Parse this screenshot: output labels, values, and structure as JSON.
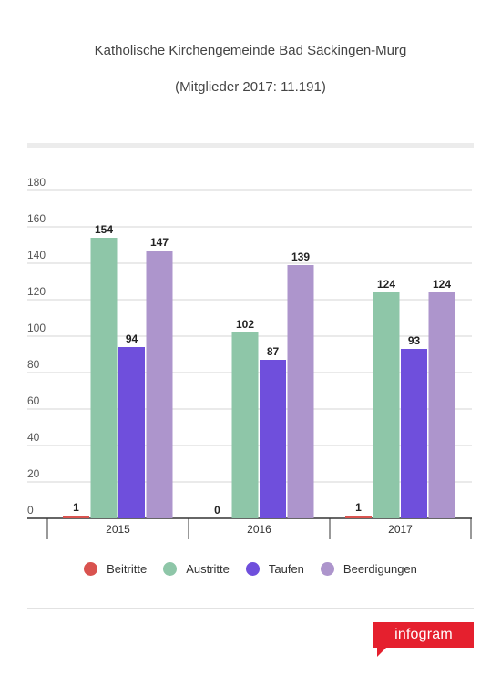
{
  "title": "Katholische Kirchengemeinde Bad Säckingen-Murg",
  "subtitle": "(Mitglieder 2017: 11.191)",
  "brand": {
    "name": "infogram",
    "color": "#e5202e"
  },
  "colors": {
    "Beitritte": "#d9534f",
    "Austritte": "#8ec6a8",
    "Taufen": "#6f4fdc",
    "Beerdigungen": "#ad95cc",
    "grid": "#d4d4d4",
    "axis": "#333333"
  },
  "chart_data": {
    "type": "bar",
    "categories": [
      "2015",
      "2016",
      "2017"
    ],
    "series": [
      {
        "name": "Beitritte",
        "values": [
          1,
          0,
          1
        ]
      },
      {
        "name": "Austritte",
        "values": [
          154,
          102,
          124
        ]
      },
      {
        "name": "Taufen",
        "values": [
          94,
          87,
          93
        ]
      },
      {
        "name": "Beerdigungen",
        "values": [
          147,
          139,
          124
        ]
      }
    ],
    "ylim": [
      0,
      180
    ],
    "yticks": [
      0,
      20,
      40,
      60,
      80,
      100,
      120,
      140,
      160,
      180
    ],
    "grid": true,
    "legend_position": "bottom"
  }
}
